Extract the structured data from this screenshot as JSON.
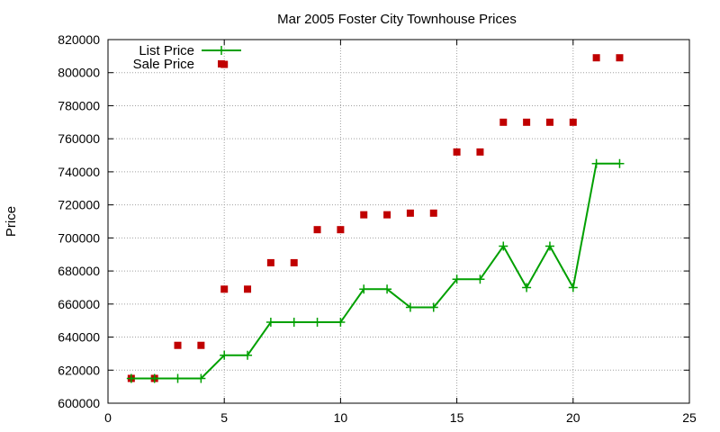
{
  "chart_data": {
    "type": "line",
    "title": "Mar 2005 Foster City Townhouse Prices",
    "xlabel": "",
    "ylabel": "Price",
    "xlim": [
      0,
      25
    ],
    "ylim": [
      600000,
      820000
    ],
    "x_ticks": [
      "0",
      "5",
      "10",
      "15",
      "20",
      "25"
    ],
    "y_ticks": [
      "600000",
      "620000",
      "640000",
      "660000",
      "680000",
      "700000",
      "720000",
      "740000",
      "760000",
      "780000",
      "800000",
      "820000"
    ],
    "grid": true,
    "legend_position": "top-left",
    "series": [
      {
        "name": "List Price",
        "style": "line with plus markers",
        "color": "#00a000",
        "x": [
          1,
          2,
          3,
          4,
          5,
          6,
          7,
          8,
          9,
          10,
          11,
          12,
          13,
          14,
          15,
          16,
          17,
          18,
          19,
          20,
          21,
          22
        ],
        "y": [
          615000,
          615000,
          615000,
          615000,
          629000,
          629000,
          649000,
          649000,
          649000,
          649000,
          669000,
          669000,
          658000,
          658000,
          675000,
          675000,
          695000,
          670000,
          695000,
          670000,
          745000,
          745000
        ]
      },
      {
        "name": "Sale Price",
        "style": "square points",
        "color": "#c00000",
        "x": [
          1,
          2,
          3,
          4,
          5,
          6,
          7,
          8,
          9,
          10,
          11,
          12,
          13,
          14,
          15,
          16,
          17,
          18,
          19,
          20,
          21,
          22
        ],
        "y": [
          615000,
          615000,
          635000,
          635000,
          669000,
          669000,
          685000,
          685000,
          705000,
          705000,
          714000,
          714000,
          715000,
          715000,
          752000,
          752000,
          770000,
          770000,
          770000,
          770000,
          809000,
          809000
        ],
        "extra_points": [
          {
            "x": 5,
            "y": 805000
          }
        ]
      }
    ]
  }
}
